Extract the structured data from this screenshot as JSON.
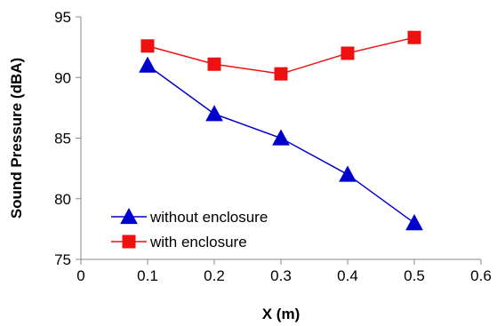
{
  "chart_data": {
    "type": "line",
    "title": "",
    "xlabel": "X (m)",
    "ylabel": "Sound Pressure (dBA)",
    "xlim": [
      0,
      0.6
    ],
    "ylim": [
      75,
      95
    ],
    "xticks": [
      0,
      0.1,
      0.2,
      0.3,
      0.4,
      0.5,
      0.6
    ],
    "xtick_labels": [
      "0",
      "0.1",
      "0.2",
      "0.3",
      "0.4",
      "0.5",
      "0.6"
    ],
    "yticks": [
      75,
      80,
      85,
      90,
      95
    ],
    "ytick_labels": [
      "75",
      "80",
      "85",
      "90",
      "95"
    ],
    "grid": false,
    "legend_position": "bottom-left",
    "series": [
      {
        "name": "without enclosure",
        "marker": "triangle",
        "color": "#0000CC",
        "x": [
          0.1,
          0.2,
          0.3,
          0.4,
          0.5
        ],
        "y": [
          91,
          87,
          85,
          82,
          78
        ]
      },
      {
        "name": "with enclosure",
        "marker": "square",
        "color": "#EE1111",
        "x": [
          0.1,
          0.2,
          0.3,
          0.4,
          0.5
        ],
        "y": [
          92.6,
          91.1,
          90.3,
          92.0,
          93.3
        ]
      }
    ]
  }
}
